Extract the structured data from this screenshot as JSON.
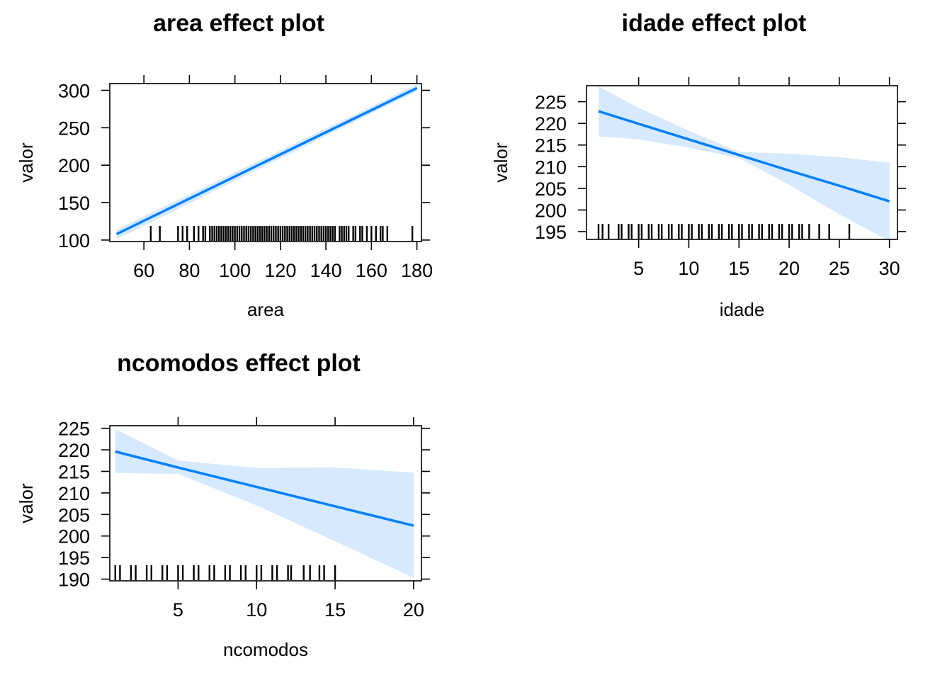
{
  "colors": {
    "line": "#0080FF",
    "band": "#D6E9FF",
    "frame": "#000000",
    "rug": "#000000"
  },
  "chart_data": [
    {
      "type": "line",
      "title": "area effect plot",
      "xlabel": "area",
      "ylabel": "valor",
      "xlim": [
        45,
        182
      ],
      "ylim": [
        98,
        309
      ],
      "x_ticks": [
        60,
        80,
        100,
        120,
        140,
        160,
        180
      ],
      "y_ticks": [
        100,
        150,
        200,
        250,
        300
      ],
      "series": [
        {
          "x": [
            48,
            180
          ],
          "y": [
            108,
            303
          ],
          "lower": [
            101,
            299
          ],
          "upper": [
            114,
            308
          ]
        }
      ],
      "rug": [
        63,
        67,
        75,
        77,
        79,
        82,
        84,
        86,
        87,
        89,
        90,
        91,
        92,
        93,
        94,
        95,
        96,
        97,
        98,
        99,
        100,
        101,
        102,
        103,
        104,
        105,
        106,
        107,
        108,
        109,
        110,
        111,
        112,
        113,
        114,
        115,
        116,
        117,
        118,
        119,
        120,
        121,
        122,
        123,
        124,
        125,
        126,
        127,
        128,
        129,
        130,
        131,
        132,
        133,
        134,
        135,
        136,
        137,
        138,
        139,
        140,
        141,
        142,
        143,
        144,
        146,
        147,
        148,
        149,
        150,
        152,
        153,
        155,
        156,
        158,
        160,
        162,
        164,
        165,
        167,
        178
      ]
    },
    {
      "type": "line",
      "title": "idade effect plot",
      "xlabel": "idade",
      "ylabel": "valor",
      "xlim": [
        -0.2,
        30.8
      ],
      "ylim": [
        193.2,
        228.7
      ],
      "x_ticks": [
        5,
        10,
        15,
        20,
        25,
        30
      ],
      "y_ticks": [
        195,
        200,
        205,
        210,
        215,
        220,
        225
      ],
      "series": [
        {
          "x": [
            1,
            5,
            10,
            15,
            20,
            25,
            30
          ],
          "y": [
            222.8,
            219.9,
            216.3,
            212.7,
            209.1,
            205.6,
            202.0
          ],
          "lower": [
            217.0,
            216.3,
            214.4,
            212.0,
            205.8,
            199.0,
            192.8
          ],
          "upper": [
            228.5,
            223.6,
            218.3,
            213.4,
            213.0,
            212.2,
            210.9
          ]
        }
      ],
      "rug": [
        1,
        1.4,
        2,
        3,
        3.3,
        4,
        4.3,
        5,
        5.3,
        6,
        6.3,
        7,
        7.3,
        8,
        8.3,
        9,
        9.3,
        10,
        10.3,
        11,
        11.3,
        12,
        12.3,
        13,
        13.3,
        14,
        14.3,
        15,
        15.3,
        16,
        16.3,
        17,
        17.3,
        18,
        18.3,
        19,
        19.3,
        20,
        20.3,
        21,
        21.3,
        22,
        23,
        24,
        26
      ]
    },
    {
      "type": "line",
      "title": "ncomodos effect plot",
      "xlabel": "ncomodos",
      "ylabel": "valor",
      "xlim": [
        0.65,
        20.5
      ],
      "ylim": [
        189.6,
        225.6
      ],
      "x_ticks": [
        5,
        10,
        15,
        20
      ],
      "y_ticks": [
        190,
        195,
        200,
        205,
        210,
        215,
        220,
        225
      ],
      "series": [
        {
          "x": [
            1,
            5,
            10,
            15,
            20
          ],
          "y": [
            219.6,
            215.9,
            211.4,
            206.9,
            202.4
          ],
          "lower": [
            214.6,
            214.4,
            207.1,
            198.8,
            190.3
          ],
          "upper": [
            224.8,
            217.5,
            215.8,
            215.9,
            214.7
          ]
        }
      ],
      "rug": [
        1,
        1.3,
        2,
        2.3,
        3,
        3.3,
        4,
        4.3,
        5,
        5.3,
        6,
        6.3,
        7,
        7.3,
        8,
        8.3,
        9,
        9.3,
        10,
        10.3,
        11,
        11.3,
        12,
        12.2,
        13,
        13.4,
        14,
        14.3,
        15
      ]
    }
  ]
}
